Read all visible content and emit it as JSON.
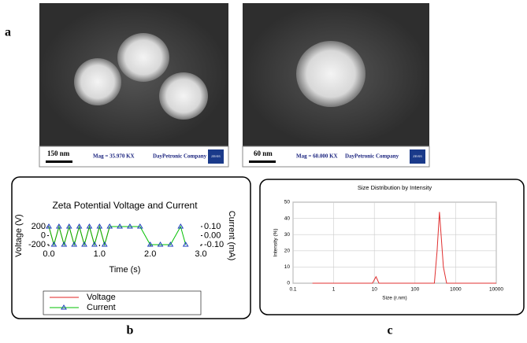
{
  "panel_labels": {
    "a": "a",
    "b": "b",
    "c": "c"
  },
  "micrographs": [
    {
      "scale_bar": "150 nm",
      "magnification": "Mag = 35.970 KX",
      "company": "DayPetronic Company",
      "logo": "ZEISS"
    },
    {
      "scale_bar": "60 nm",
      "magnification": "Mag = 60.000 KX",
      "company": "DayPetronic Company",
      "logo": "ZEISS"
    }
  ],
  "chart_data": [
    {
      "type": "line",
      "title": "Zeta Potential Voltage and Current",
      "x_label": "Time (s)",
      "y_label": "Voltage (V)",
      "y2_label": "Current (mA)",
      "x": [
        0,
        0.1,
        0.2,
        0.3,
        0.4,
        0.5,
        0.6,
        0.7,
        0.8,
        0.9,
        1.0,
        1.1,
        1.2,
        1.4,
        1.6,
        1.8,
        2.0,
        2.2,
        2.4,
        2.6,
        2.7
      ],
      "series": [
        {
          "name": "Voltage",
          "color": "#e02020",
          "values": [
            200,
            -200,
            200,
            -200,
            200,
            -200,
            200,
            -200,
            200,
            -200,
            200,
            -200,
            200,
            null,
            null,
            null,
            null,
            null,
            null,
            null,
            null
          ]
        },
        {
          "name": "Current",
          "color": "#00c000",
          "marker": "triangle",
          "marker_color": "#1f3fbf",
          "axis": "y2",
          "values": [
            0.1,
            -0.1,
            0.1,
            -0.1,
            0.1,
            -0.1,
            0.1,
            -0.1,
            0.1,
            -0.1,
            0.1,
            -0.1,
            0.1,
            0.1,
            0.1,
            0.1,
            -0.1,
            -0.1,
            -0.1,
            0.1,
            -0.1
          ]
        }
      ],
      "xlim": [
        0,
        3
      ],
      "xticks": [
        {
          "value": 0,
          "label": "0.0"
        },
        {
          "value": 1,
          "label": "1.0"
        },
        {
          "value": 2,
          "label": "2.0"
        },
        {
          "value": 3,
          "label": "3.0"
        }
      ],
      "ylim": [
        -200,
        200
      ],
      "yticks": [
        -200,
        0,
        200
      ],
      "y2lim": [
        -0.1,
        0.1
      ],
      "y2ticks": [
        {
          "value": -0.1,
          "label": "-0.10"
        },
        {
          "value": 0,
          "label": "0.00"
        },
        {
          "value": 0.1,
          "label": "0.10"
        }
      ],
      "grid": false,
      "legend": "bottom"
    },
    {
      "type": "line",
      "title": "Size Distribution by Intensity",
      "x_label": "Size (r.nm)",
      "y_label": "Intensity (%)",
      "x": [
        0.3,
        9,
        11,
        13,
        300,
        350,
        400,
        500,
        600,
        10000
      ],
      "series": [
        {
          "name": "Intensity",
          "color": "#e03030",
          "values": [
            0,
            0,
            4,
            0,
            0,
            20,
            44,
            10,
            0,
            0
          ]
        }
      ],
      "xlim": [
        0.1,
        10000
      ],
      "xticks": [
        0.1,
        1,
        10,
        100,
        1000,
        10000
      ],
      "xscale": "log",
      "ylim": [
        0,
        50
      ],
      "yticks": [
        0,
        10,
        20,
        30,
        40,
        50
      ],
      "grid": true
    }
  ]
}
